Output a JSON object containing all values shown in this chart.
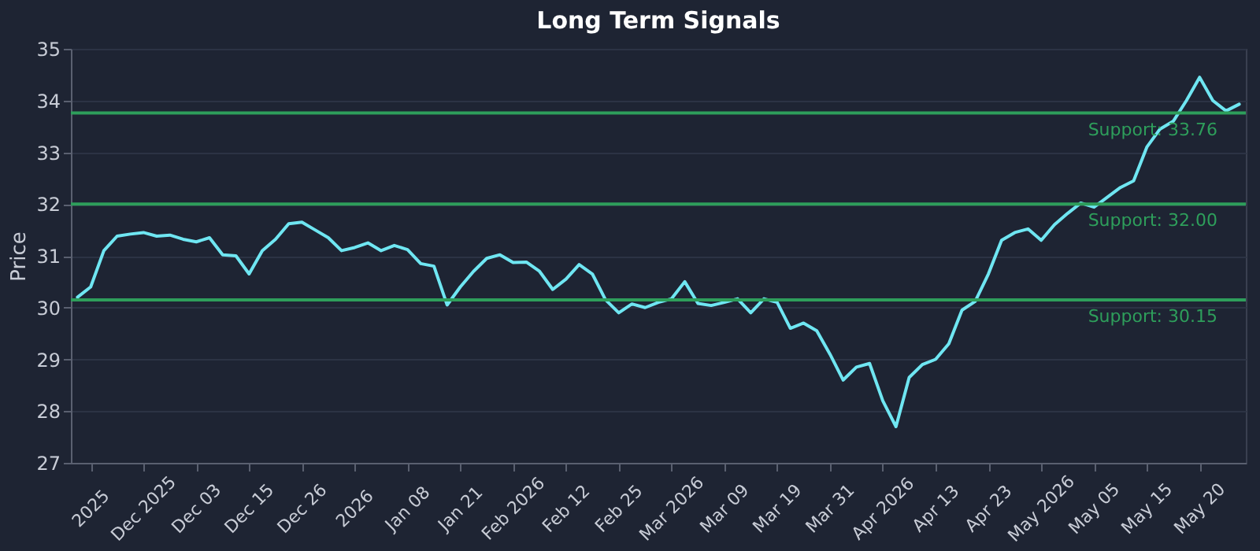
{
  "chart_data": {
    "type": "line",
    "title": "Long Term Signals",
    "ylabel": "Price",
    "categories": [
      null,
      "2025",
      null,
      null,
      null,
      "Dec 2025",
      null,
      null,
      null,
      "Dec 03",
      null,
      null,
      null,
      "Dec 15",
      null,
      null,
      null,
      "Dec 26",
      null,
      null,
      null,
      "2026",
      null,
      null,
      null,
      "Jan 08",
      null,
      null,
      null,
      "Jan 21",
      null,
      null,
      null,
      "Feb 2026",
      null,
      null,
      null,
      "Feb 12",
      null,
      null,
      null,
      "Feb 25",
      null,
      null,
      null,
      "Mar 2026",
      null,
      null,
      null,
      "Mar 09",
      null,
      null,
      null,
      "Mar 19",
      null,
      null,
      null,
      "Mar 31",
      null,
      null,
      null,
      "Apr 2026",
      null,
      null,
      null,
      "Apr 13",
      null,
      null,
      null,
      "Apr 23",
      null,
      null,
      null,
      "May 2026",
      null,
      null,
      null,
      "May 05",
      null,
      null,
      null,
      "May 15",
      null,
      null,
      null,
      "May 20",
      null,
      null,
      null
    ],
    "series": [
      {
        "color": "#6fe6f2",
        "values": [
          30.2,
          30.4,
          31.1,
          31.38,
          31.42,
          31.45,
          31.38,
          31.4,
          31.32,
          31.27,
          31.35,
          31.02,
          31.0,
          30.65,
          31.1,
          31.32,
          31.62,
          31.65,
          31.5,
          31.35,
          31.1,
          31.16,
          31.25,
          31.1,
          31.2,
          31.12,
          30.85,
          30.8,
          30.05,
          30.4,
          30.7,
          30.95,
          31.02,
          30.87,
          30.88,
          30.7,
          30.35,
          30.55,
          30.83,
          30.65,
          30.15,
          29.9,
          30.07,
          30.0,
          30.1,
          30.17,
          30.5,
          30.08,
          30.04,
          30.1,
          30.17,
          29.9,
          30.17,
          30.1,
          29.6,
          29.7,
          29.55,
          29.1,
          28.6,
          28.85,
          28.92,
          28.2,
          27.7,
          28.65,
          28.9,
          29.0,
          29.3,
          29.95,
          30.12,
          30.65,
          31.3,
          31.45,
          31.52,
          31.3,
          31.6,
          31.82,
          32.02,
          31.94,
          32.13,
          32.32,
          32.45,
          33.1,
          33.45,
          33.6,
          34.0,
          34.45,
          34.0,
          33.8,
          33.93
        ]
      }
    ],
    "ylim": [
      27,
      35
    ],
    "yticks": [
      27,
      28,
      29,
      30,
      31,
      32,
      33,
      34,
      35
    ],
    "grid": "y",
    "ref_lines": [
      {
        "axis": "y",
        "value": 33.76,
        "label": "Support: 33.76",
        "color": "#2e9e5b"
      },
      {
        "axis": "y",
        "value": 32.0,
        "label": "Support: 32.00",
        "color": "#2e9e5b"
      },
      {
        "axis": "y",
        "value": 30.15,
        "label": "Support: 30.15",
        "color": "#2e9e5b"
      }
    ]
  }
}
